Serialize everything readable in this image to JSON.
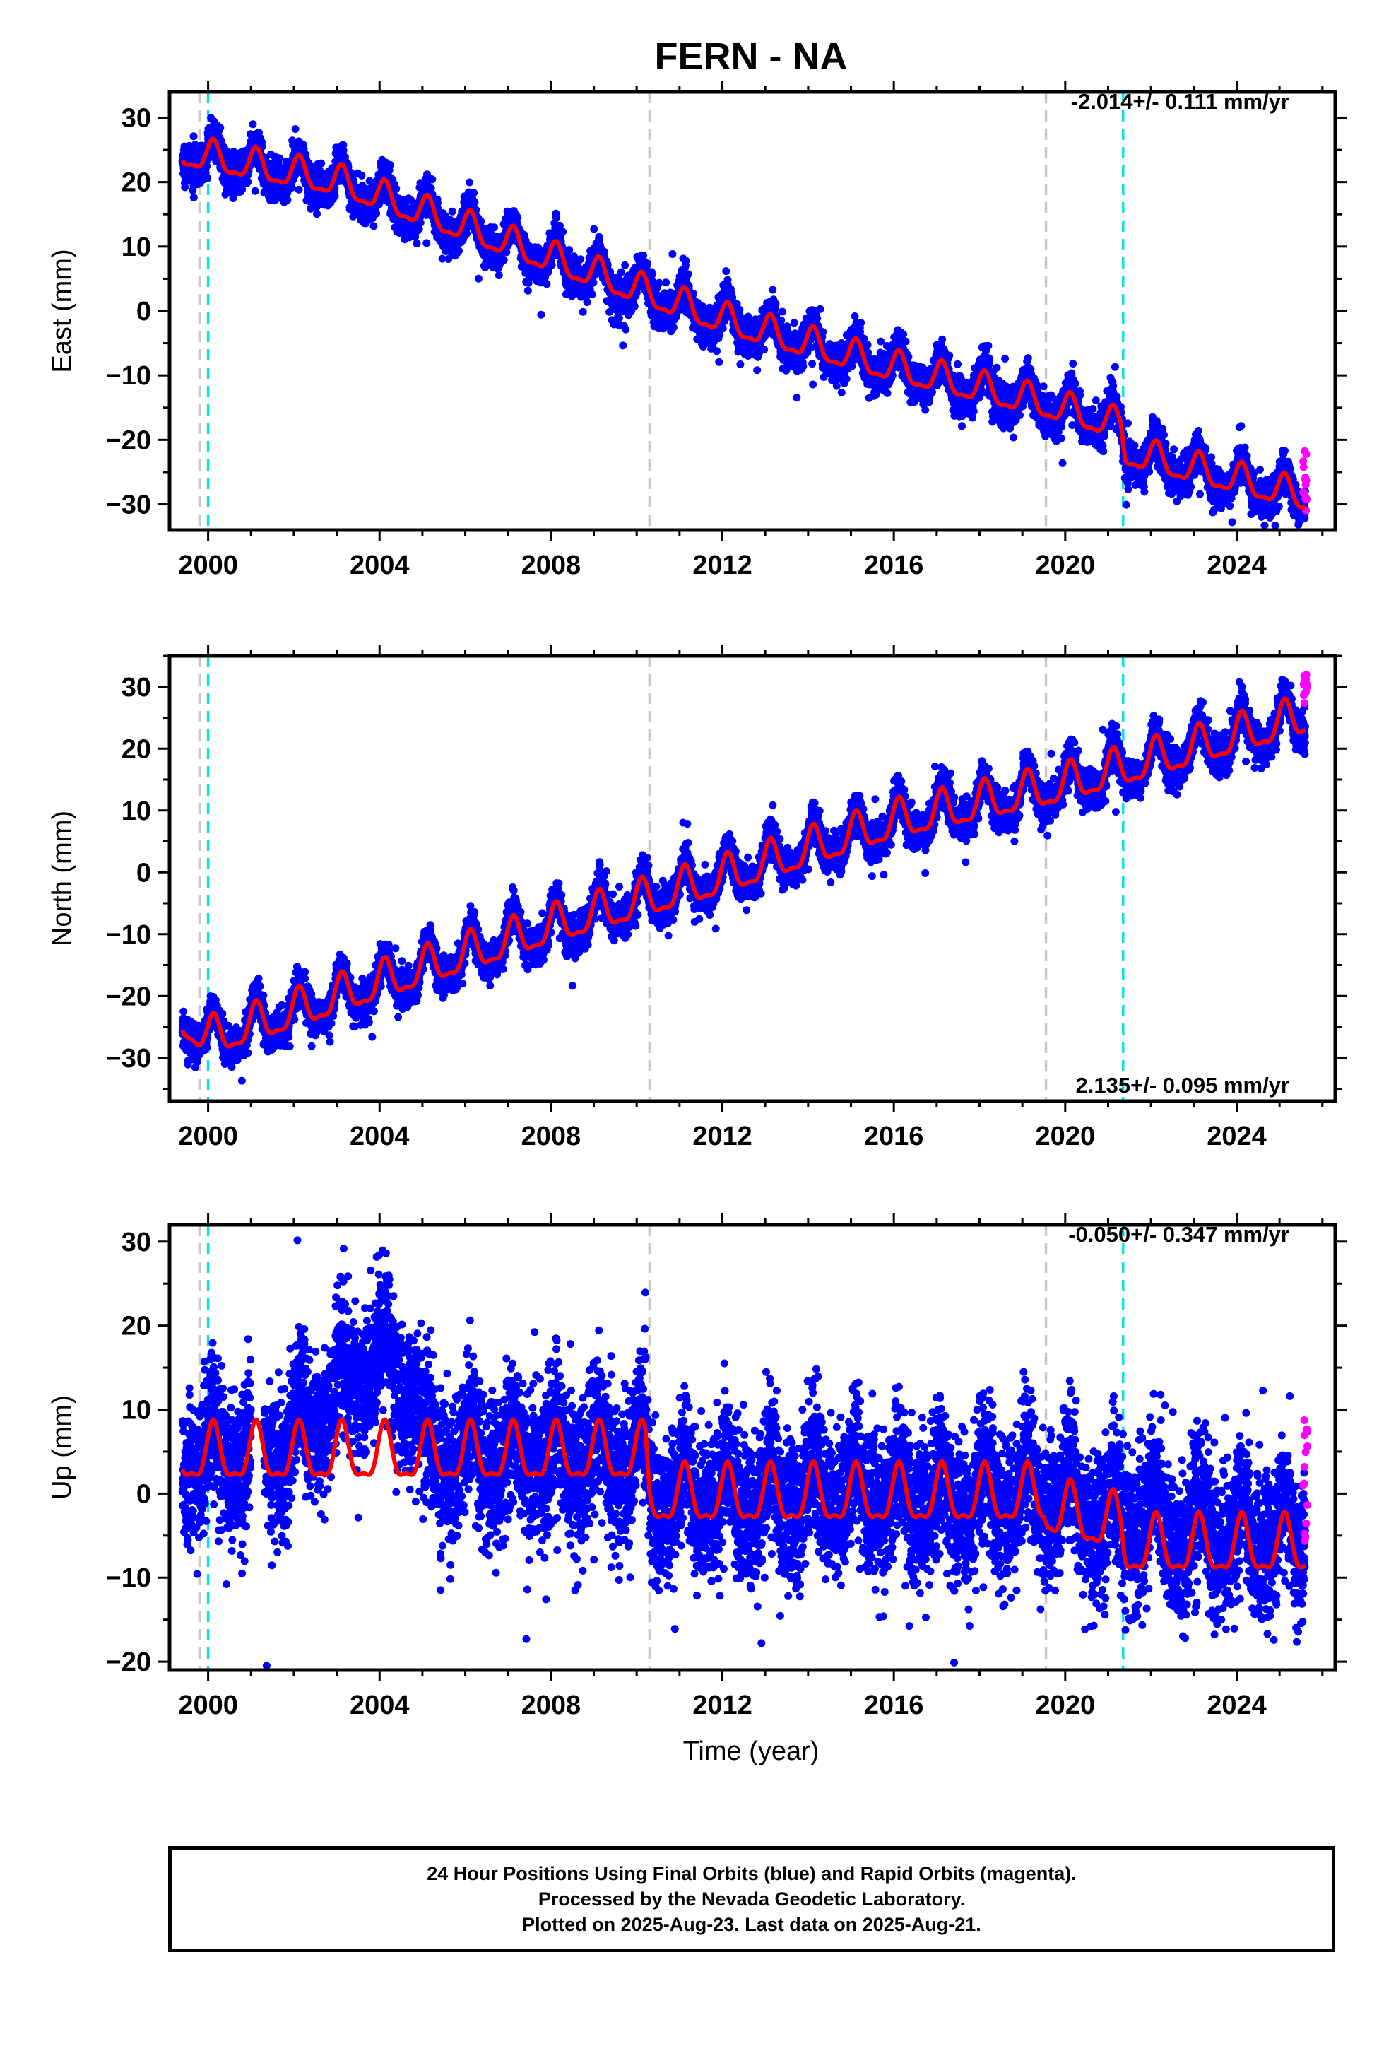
{
  "title": "FERN - NA",
  "x_axis": {
    "label": "Time (year)",
    "ticks": [
      2000,
      2004,
      2008,
      2012,
      2016,
      2020,
      2024
    ],
    "range": [
      1999.1,
      2026.3
    ]
  },
  "colors": {
    "final_orbits": "#0000ff",
    "rapid_orbits": "#ff00ff",
    "model": "#ff0000",
    "offset_generic": "#c8c8c8",
    "offset_equipment": "#00e5ee"
  },
  "offset_lines": [
    {
      "year": 1999.8,
      "kind": "generic"
    },
    {
      "year": 2000.0,
      "kind": "equipment"
    },
    {
      "year": 2010.3,
      "kind": "generic"
    },
    {
      "year": 2019.55,
      "kind": "generic"
    },
    {
      "year": 2021.35,
      "kind": "equipment"
    }
  ],
  "chart_data": [
    {
      "type": "scatter",
      "panel": "east",
      "ylabel": "East (mm)",
      "ylim": [
        -34,
        34
      ],
      "yticks": [
        30,
        20,
        10,
        0,
        -10,
        -20,
        -30
      ],
      "rate_label": "-2.014+/- 0.111 mm/yr",
      "rate_position": "top-right",
      "series": [
        {
          "name": "Final Orbits (blue)",
          "role": "final",
          "color": "#0000ff",
          "scatter_sd": 1.4,
          "trend": [
            [
              1999.4,
              24.5
            ],
            [
              2003.0,
              20
            ],
            [
              2008.0,
              8
            ],
            [
              2012.0,
              -1.5
            ],
            [
              2016.0,
              -9
            ],
            [
              2019.5,
              -14.5
            ],
            [
              2021.3,
              -18
            ],
            [
              2021.4,
              -22
            ],
            [
              2025.6,
              -29
            ]
          ],
          "season_amp": 2.5
        },
        {
          "name": "Rapid Orbits (magenta)",
          "role": "rapid",
          "color": "#ff00ff",
          "x_range": [
            2025.55,
            2025.65
          ],
          "y_range": [
            -31,
            -21
          ]
        }
      ],
      "model": {
        "color": "#ff0000",
        "trend": [
          [
            1999.4,
            24.5
          ],
          [
            2003.0,
            20
          ],
          [
            2008.0,
            8
          ],
          [
            2012.0,
            -1.5
          ],
          [
            2016.0,
            -9
          ],
          [
            2019.5,
            -14.5
          ],
          [
            2021.3,
            -18
          ],
          [
            2021.4,
            -22
          ],
          [
            2025.6,
            -29
          ]
        ],
        "season_amp": 2.3
      }
    },
    {
      "type": "scatter",
      "panel": "north",
      "ylabel": "North (mm)",
      "ylim": [
        -37,
        35
      ],
      "yticks": [
        30,
        20,
        10,
        0,
        -10,
        -20,
        -30
      ],
      "rate_label": "2.135+/- 0.095 mm/yr",
      "rate_position": "bottom-right",
      "series": [
        {
          "name": "Final Orbits (blue)",
          "role": "final",
          "color": "#0000ff",
          "scatter_sd": 1.4,
          "trend": [
            [
              1999.4,
              -24
            ],
            [
              2000.0,
              -27
            ],
            [
              2001.0,
              -25
            ],
            [
              2004.0,
              -18
            ],
            [
              2008.0,
              -9
            ],
            [
              2012.0,
              -1
            ],
            [
              2016.0,
              8
            ],
            [
              2020.0,
              14
            ],
            [
              2025.6,
              25
            ]
          ],
          "season_amp": 3.2
        },
        {
          "name": "Rapid Orbits (magenta)",
          "role": "rapid",
          "color": "#ff00ff",
          "x_range": [
            2025.55,
            2025.65
          ],
          "y_range": [
            27,
            32
          ]
        }
      ],
      "model": {
        "color": "#ff0000",
        "trend": [
          [
            1999.4,
            -24
          ],
          [
            2000.0,
            -27
          ],
          [
            2001.0,
            -25
          ],
          [
            2004.0,
            -18
          ],
          [
            2008.0,
            -9
          ],
          [
            2012.0,
            -1
          ],
          [
            2016.0,
            8
          ],
          [
            2020.0,
            14
          ],
          [
            2025.6,
            25
          ]
        ],
        "season_amp": 3.0
      }
    },
    {
      "type": "scatter",
      "panel": "up",
      "ylabel": "Up (mm)",
      "ylim": [
        -21,
        32
      ],
      "yticks": [
        30,
        20,
        10,
        0,
        -10,
        -20
      ],
      "rate_label": "-0.050+/- 0.347 mm/yr",
      "rate_position": "top-right",
      "series": [
        {
          "name": "Final Orbits (blue)",
          "role": "final",
          "color": "#0000ff",
          "scatter_sd": 4.2,
          "trend": [
            [
              1999.4,
              4.5
            ],
            [
              2002.0,
              6
            ],
            [
              2003.0,
              13
            ],
            [
              2004.0,
              16
            ],
            [
              2004.9,
              12
            ],
            [
              2005.0,
              4.5
            ],
            [
              2010.2,
              4.5
            ],
            [
              2010.3,
              0
            ],
            [
              2019.5,
              0
            ],
            [
              2021.3,
              -3
            ],
            [
              2025.6,
              -5
            ]
          ],
          "season_amp": 3.2
        },
        {
          "name": "Rapid Orbits (magenta)",
          "role": "rapid",
          "color": "#ff00ff",
          "x_range": [
            2025.55,
            2025.65
          ],
          "y_range": [
            -9,
            9
          ]
        }
      ],
      "model": {
        "color": "#ff0000",
        "trend": [
          [
            1999.4,
            4.5
          ],
          [
            2010.2,
            4.5
          ],
          [
            2010.3,
            -0.5
          ],
          [
            2019.5,
            -0.5
          ],
          [
            2019.6,
            -2
          ],
          [
            2021.3,
            -4
          ],
          [
            2021.4,
            -6.5
          ],
          [
            2025.6,
            -6.5
          ]
        ],
        "season_amp": 3.2
      }
    }
  ],
  "caption": {
    "line1": "24 Hour Positions Using Final Orbits (blue) and Rapid Orbits (magenta).",
    "line2": "Processed by the Nevada Geodetic Laboratory.",
    "line3": "Plotted on 2025-Aug-23. Last data on 2025-Aug-21."
  }
}
